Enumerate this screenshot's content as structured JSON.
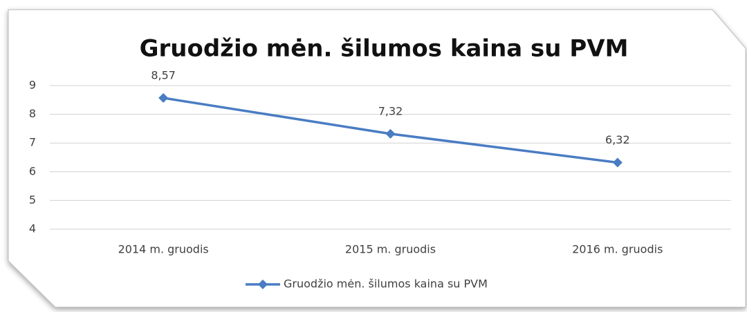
{
  "chart_data": {
    "type": "line",
    "title": "Gruodžio mėn. šilumos kaina su PVM",
    "categories": [
      "2014 m. gruodis",
      "2015 m. gruodis",
      "2016 m. gruodis"
    ],
    "series": [
      {
        "name": "Gruodžio mėn. šilumos kaina su PVM",
        "color": "#4a7cc3",
        "values": [
          8.57,
          7.32,
          6.32
        ],
        "value_labels": [
          "8,57",
          "7,32",
          "6,32"
        ]
      }
    ],
    "ylim": [
      4,
      9
    ],
    "yticks": [
      4,
      5,
      6,
      7,
      8,
      9
    ],
    "grid": true,
    "legend": "bottom"
  }
}
